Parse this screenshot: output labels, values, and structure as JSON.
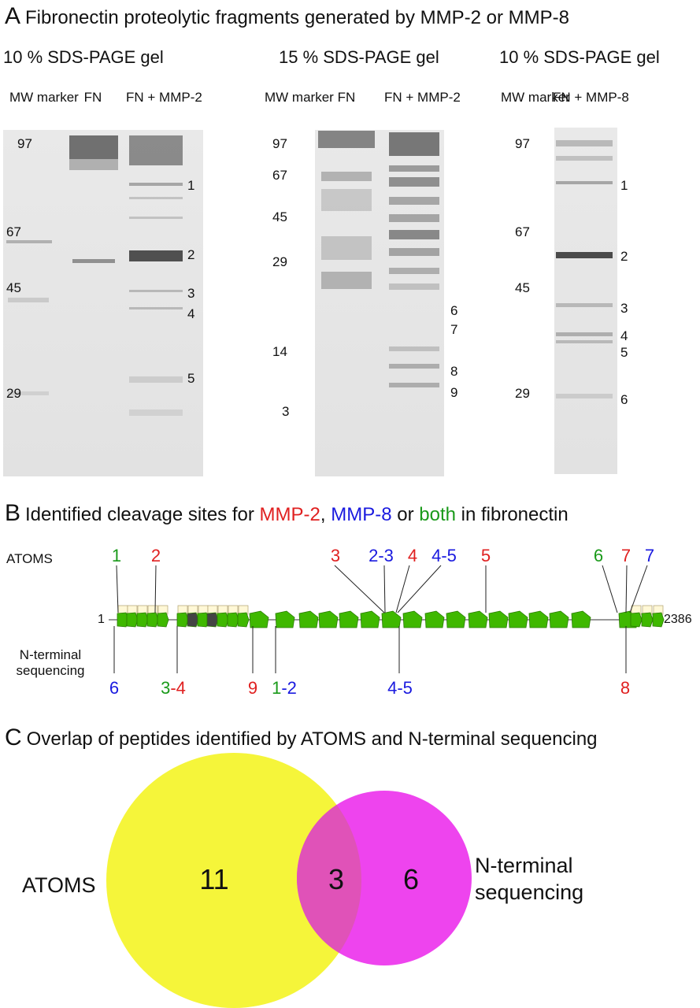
{
  "panel_a": {
    "letter": "A",
    "title": "Fibronectin proteolytic fragments generated by MMP-2 or MMP-8",
    "gels": [
      {
        "title": "10 % SDS-PAGE gel",
        "lanes": [
          "MW marker",
          "FN",
          "FN + MMP-2"
        ],
        "mw_labels": [
          "97",
          "67",
          "45",
          "29"
        ],
        "band_labels": [
          "1",
          "2",
          "3",
          "4",
          "5"
        ]
      },
      {
        "title": "15 % SDS-PAGE gel",
        "lanes": [
          "MW marker",
          "FN",
          "FN + MMP-2"
        ],
        "mw_labels": [
          "97",
          "67",
          "45",
          "29",
          "14",
          "3"
        ],
        "band_labels": [
          "6",
          "7",
          "8",
          "9"
        ]
      },
      {
        "title": "10 % SDS-PAGE gel",
        "lanes": [
          "MW marker",
          "FN + MMP-8"
        ],
        "mw_labels": [
          "97",
          "67",
          "45",
          "29"
        ],
        "band_labels": [
          "1",
          "2",
          "3",
          "4",
          "5",
          "6"
        ]
      }
    ]
  },
  "panel_b": {
    "letter": "B",
    "title_parts": [
      "Identified cleavage sites for ",
      "MMP-2",
      ", ",
      "MMP-8",
      " or ",
      "both",
      " in fibronectin"
    ],
    "row_atoms": "ATOMS",
    "row_nterm": "N-terminal sequencing",
    "start": "1",
    "end": "2386",
    "atoms_sites": [
      {
        "text": "1",
        "color": "green"
      },
      {
        "text": "2",
        "color": "red"
      },
      {
        "text": "3",
        "color": "red"
      },
      {
        "text": "2-3",
        "color": "blue"
      },
      {
        "text": "4",
        "color": "red"
      },
      {
        "text": "4-5",
        "color": "blue"
      },
      {
        "text": "5",
        "color": "red"
      },
      {
        "text": "6",
        "color": "green"
      },
      {
        "text": "7",
        "color": "red"
      },
      {
        "text": "7",
        "color": "blue"
      }
    ],
    "nterm_sites": [
      {
        "text": "6",
        "color": "blue"
      },
      {
        "text": "3",
        "color": "green",
        "suffix": "-4",
        "suffix_color": "red"
      },
      {
        "text": "9",
        "color": "red"
      },
      {
        "text": "1",
        "color": "green",
        "suffix": "-2",
        "suffix_color": "blue"
      },
      {
        "text": "4-5",
        "color": "blue"
      },
      {
        "text": "8",
        "color": "red"
      }
    ],
    "colors": {
      "red": "#e02020",
      "blue": "#1a1adf",
      "green": "#1a9a1a",
      "module": "#3fb800"
    }
  },
  "panel_c": {
    "letter": "C",
    "title": "Overlap of peptides identified  by ATOMS and N-terminal sequencing",
    "left_label": "ATOMS",
    "right_label": [
      "N-terminal",
      "sequencing"
    ],
    "only_atoms": "11",
    "overlap": "3",
    "only_nterm": "6",
    "colors": {
      "atoms": "#f5f53a",
      "nterm": "#ee44ee",
      "overlap": "#e052b8"
    }
  }
}
